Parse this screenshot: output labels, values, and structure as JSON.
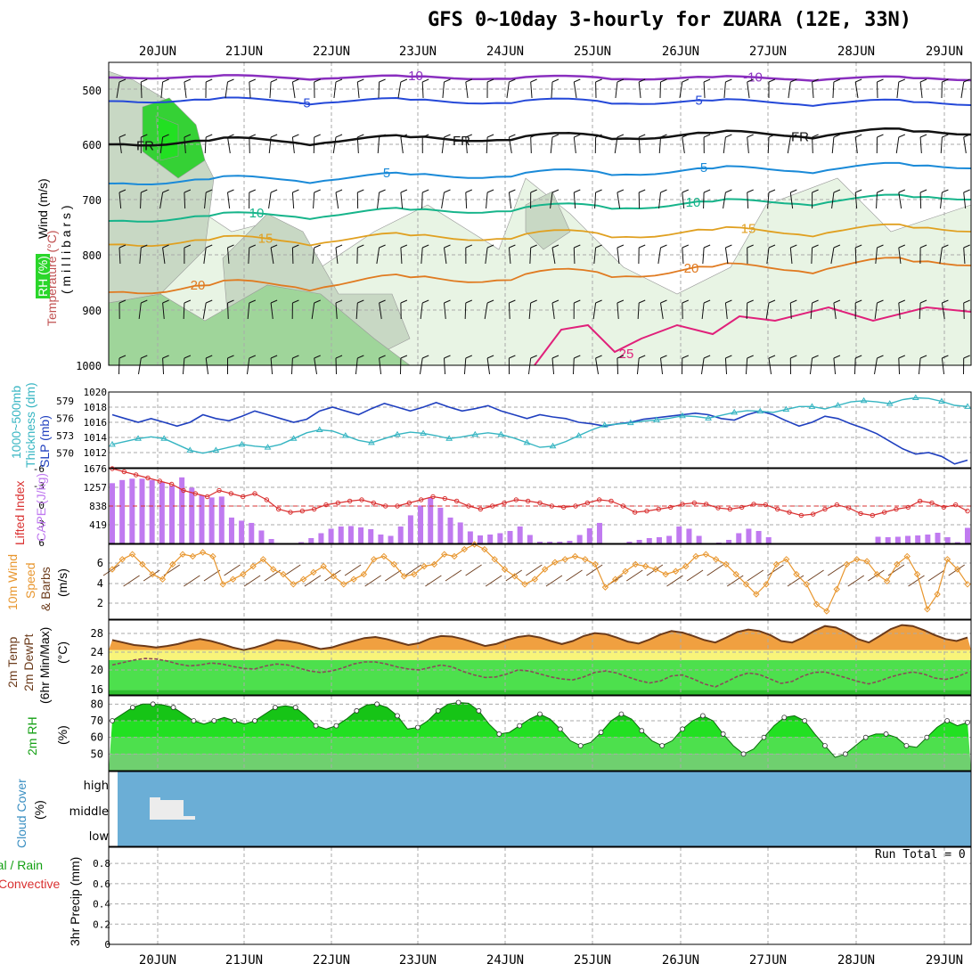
{
  "title": "GFS 0~10day 3-hourly for ZUARA (12E, 33N)",
  "dates": [
    "20JUN",
    "21JUN",
    "22JUN",
    "23JUN",
    "24JUN",
    "25JUN",
    "26JUN",
    "27JUN",
    "28JUN",
    "29JUN"
  ],
  "colors": {
    "grid": "#aaaaaa",
    "slp": "#1f3fbf",
    "thickness": "#36b5c2",
    "lifted": "#d93030",
    "cape": "#c07af0",
    "wind": "#e8962e",
    "temp_fill": "#f0a040",
    "temp_line": "#6b3a1a",
    "dew": "#8b4a5a",
    "rh": "#2ad62a",
    "cloud": "#6baed6",
    "sky": "#ececec"
  },
  "labels": {
    "upper_wind": "Wind (m/s)",
    "upper_temp": "Temperature (°C)",
    "upper_rh": "RH (%)",
    "upper_mb": "( m i l l i b a r s )",
    "thick": "1000~500mb",
    "thick2": "Thickness (dm)",
    "slp": "SLP (mb)",
    "lifted": "Lifted Index",
    "cape": "CAPE (J/kg)",
    "wind10a": "10m Wind",
    "wind10b": "Speed",
    "wind10c": "& Barbs",
    "wind10d": "(m/s)",
    "t2a": "2m Temp",
    "t2b": "2m DewPt",
    "t2c": "(6hr Min/Max)",
    "t2d": "(°C)",
    "rh2a": "2m RH",
    "rh2b": "(%)",
    "cca": "Cloud Cover",
    "ccb": "(%)",
    "pra": "Total / Rain",
    "prb": "Convective",
    "prc": "3hr Precip (mm)",
    "run_total": "Run Total = 0"
  },
  "chart_data": [
    {
      "type": "contour",
      "name": "upper-air cross-section",
      "y_ticks": [
        500,
        600,
        700,
        800,
        900,
        1000
      ],
      "isotherm_labels": [
        "-10",
        "-5",
        "FR",
        "5",
        "10",
        "15",
        "20",
        "25",
        "30",
        "50"
      ]
    },
    {
      "type": "line",
      "series": [
        {
          "name": "SLP",
          "y_ticks": [
            1012,
            1014,
            1016,
            1018,
            1020
          ],
          "values": [
            1017,
            1016.5,
            1016,
            1016.5,
            1016,
            1015.5,
            1016,
            1017,
            1016.5,
            1016.2,
            1016.8,
            1017.5,
            1017,
            1016.5,
            1016,
            1016.4,
            1017.5,
            1018,
            1017.5,
            1017,
            1017.8,
            1018.5,
            1018,
            1017.5,
            1018,
            1018.6,
            1018,
            1017.5,
            1017.8,
            1018.2,
            1017.5,
            1017,
            1016.5,
            1017,
            1016.7,
            1016.5,
            1016,
            1015.8,
            1015.5,
            1015.8,
            1016,
            1016.4,
            1016.6,
            1016.8,
            1017,
            1017.2,
            1017,
            1016.5,
            1016.3,
            1017,
            1017.5,
            1017,
            1016.2,
            1015.5,
            1016,
            1016.8,
            1016.5,
            1015.8,
            1015.2,
            1014.5,
            1013.5,
            1012.5,
            1011.8,
            1012,
            1011.5,
            1010.5,
            1011
          ]
        },
        {
          "name": "1000~500mb Thickness",
          "y_ticks": [
            570,
            573,
            576,
            579
          ],
          "values": [
            571.5,
            572,
            572.5,
            572.8,
            572.5,
            571.5,
            570.5,
            570,
            570.5,
            571,
            571.5,
            571.2,
            571,
            571.5,
            572.5,
            573.5,
            574,
            573.8,
            573,
            572.2,
            571.8,
            572.5,
            573.2,
            573.6,
            573.4,
            573,
            572.5,
            572.8,
            573.2,
            573.5,
            573.2,
            572.6,
            571.8,
            571,
            571.2,
            572,
            573,
            574,
            574.8,
            575,
            575.2,
            575.5,
            575.7,
            576,
            576.4,
            576.3,
            576,
            576.5,
            577,
            577.3,
            577.2,
            577,
            577.5,
            578,
            578,
            577.6,
            578.2,
            578.8,
            579,
            578.8,
            578.5,
            579.2,
            579.5,
            579.4,
            578.9,
            578.2,
            578
          ]
        }
      ]
    },
    {
      "type": "bar",
      "series": [
        {
          "name": "CAPE",
          "y_ticks": [
            419,
            838,
            1257,
            1676
          ],
          "values": [
            1350,
            1420,
            1450,
            1450,
            1420,
            1370,
            1290,
            1480,
            1250,
            1080,
            1030,
            1050,
            580,
            510,
            460,
            290,
            100,
            0,
            0,
            30,
            120,
            230,
            330,
            380,
            390,
            360,
            320,
            200,
            170,
            380,
            630,
            850,
            1020,
            800,
            580,
            470,
            270,
            180,
            200,
            230,
            280,
            380,
            190,
            40,
            40,
            40,
            60,
            190,
            340,
            460,
            0,
            0,
            40,
            80,
            120,
            140,
            170,
            380,
            330,
            170,
            0,
            20,
            80,
            230,
            330,
            280,
            140,
            0,
            0,
            0,
            0,
            0,
            0,
            0,
            0,
            0,
            0,
            150,
            140,
            150,
            170,
            180,
            200,
            240,
            140,
            30,
            350
          ]
        },
        {
          "name": "Lifted Index",
          "y_ticks": [
            -6,
            -3,
            0,
            3,
            6
          ],
          "values": [
            -6,
            -5.5,
            -5,
            -4.5,
            -4,
            -3.5,
            -2.5,
            -2,
            -1.5,
            -2.5,
            -2,
            -1.5,
            -2,
            -1,
            0.5,
            1,
            0.8,
            0.5,
            -0.2,
            -0.5,
            -0.8,
            -1,
            -0.5,
            0,
            0,
            -0.5,
            -1,
            -1.5,
            -1.2,
            -0.8,
            0,
            0.5,
            0,
            -0.5,
            -1,
            -0.8,
            -0.5,
            0,
            0.2,
            0,
            -0.5,
            -1,
            -0.8,
            0,
            1,
            0.8,
            0.5,
            0.2,
            -0.3,
            -0.5,
            -0.3,
            0.3,
            0.5,
            0.2,
            -0.3,
            -0.2,
            0.5,
            1,
            1.5,
            1.3,
            0.5,
            -0.2,
            0.3,
            1.2,
            1.5,
            1,
            0.5,
            0.2,
            -0.8,
            -0.5,
            0.2,
            -0.2,
            0.8
          ]
        }
      ]
    },
    {
      "type": "line",
      "name": "10m Wind Speed",
      "y_ticks": [
        2,
        4,
        6
      ],
      "values": [
        5,
        6,
        6.5,
        5.5,
        4.5,
        4,
        5.5,
        6.5,
        6.3,
        6.7,
        6.3,
        3.5,
        4,
        4.5,
        5.3,
        6,
        5,
        4.5,
        3.5,
        4,
        4.7,
        5.3,
        4.3,
        3.5,
        4,
        4.5,
        6,
        6.3,
        5.5,
        4.3,
        4.5,
        5.3,
        5.5,
        6.5,
        6.3,
        7,
        7.5,
        7,
        6,
        5,
        4.3,
        3.5,
        4,
        5,
        5.7,
        6,
        6.3,
        6,
        5.5,
        3.2,
        4,
        4.8,
        5.5,
        5.3,
        5,
        4.5,
        4.8,
        5.3,
        6.3,
        6.5,
        6,
        5.5,
        4.5,
        3.5,
        2.5,
        3.5,
        5.5,
        6,
        4.5,
        3.5,
        1.5,
        0.8,
        3,
        5.5,
        6,
        5.8,
        4.5,
        3.8,
        5.5,
        6.3,
        4.5,
        1,
        2.5,
        6,
        5,
        3.5
      ]
    },
    {
      "type": "area",
      "series": [
        {
          "name": "2m Temp",
          "y_ticks": [
            16,
            20,
            24,
            28
          ],
          "values": [
            26,
            25.5,
            25,
            24.8,
            24.5,
            24.8,
            25.2,
            25.8,
            26.2,
            25.8,
            25.2,
            24.5,
            24,
            24.5,
            25.2,
            26,
            25.8,
            25.4,
            24.8,
            24.2,
            24.5,
            25.2,
            25.8,
            26.4,
            26.6,
            26.2,
            25.6,
            25,
            25.4,
            26.3,
            26.8,
            26.7,
            26.2,
            25.5,
            24.8,
            25.2,
            26,
            26.6,
            26.9,
            26.5,
            25.8,
            25.2,
            25.8,
            26.8,
            27.4,
            27.2,
            26.5,
            25.7,
            25.3,
            26.1,
            27.1,
            27.8,
            27.5,
            26.8,
            26,
            25.5,
            26.5,
            27.6,
            28.1,
            27.8,
            27,
            25.8,
            25.5,
            26.5,
            27.8,
            28.8,
            28.5,
            27.5,
            26.2,
            25.5,
            26.8,
            28.2,
            29,
            28.8,
            28,
            27,
            26.2,
            25.8,
            26.5
          ]
        },
        {
          "name": "2m DewPt",
          "values": [
            21,
            21.5,
            22,
            22.3,
            22.2,
            21.8,
            21.2,
            20.8,
            21,
            21.4,
            21.2,
            20.7,
            20.3,
            20.2,
            20.8,
            21.2,
            21,
            20.4,
            19.8,
            19.5,
            19.8,
            20.4,
            21.2,
            21.6,
            21.6,
            21.2,
            20.6,
            20.2,
            20,
            20.5,
            21,
            20.6,
            19.7,
            19,
            18.5,
            18.6,
            19.2,
            20,
            19.8,
            19.2,
            18.6,
            18.2,
            18,
            18.6,
            19.5,
            19.8,
            19.4,
            18.6,
            17.9,
            17.4,
            17.8,
            18.8,
            19,
            18.2,
            17.2,
            16.6,
            17.6,
            18.7,
            19.4,
            19.1,
            18.2,
            17.3,
            17.7,
            18.8,
            19.5,
            19.6,
            19,
            18.4,
            17.7,
            17.2,
            17.8,
            18.6,
            19.2,
            19.6,
            19.2,
            18.4,
            18.1,
            18.6,
            19.5
          ]
        }
      ]
    },
    {
      "type": "area",
      "name": "2m RH",
      "y_ticks": [
        50,
        60,
        70,
        80
      ],
      "values": [
        70,
        74,
        78,
        80,
        80,
        79.5,
        78,
        74,
        70,
        68,
        70,
        72,
        70,
        68,
        70,
        74,
        78,
        79,
        78,
        73,
        67,
        65,
        67,
        71,
        76,
        79.5,
        80,
        78,
        73,
        65,
        66,
        70,
        76,
        80,
        81,
        80.5,
        76,
        68,
        62,
        63,
        67,
        71,
        74,
        71,
        65,
        58,
        55,
        57,
        63,
        70,
        74,
        71,
        64,
        58,
        55,
        58,
        65,
        70,
        73,
        70,
        62,
        55,
        50,
        53,
        60,
        67,
        72,
        73,
        70,
        62,
        55,
        48,
        50,
        55,
        60,
        62,
        62,
        60,
        55,
        54,
        60,
        66,
        70,
        67,
        69
      ]
    },
    {
      "type": "heatmap",
      "name": "Cloud Cover",
      "y_ticks": [
        "high",
        "middle",
        "low"
      ]
    },
    {
      "type": "bar",
      "name": "3hr Precip",
      "y_ticks": [
        0,
        0.2,
        0.4,
        0.6,
        0.8
      ],
      "values": [],
      "run_total": 0
    }
  ]
}
